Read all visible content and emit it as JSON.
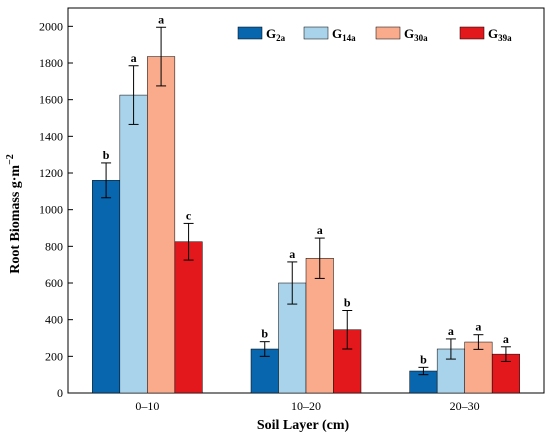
{
  "chart_data": {
    "type": "bar",
    "title": "",
    "xlabel": "Soil Layer (cm)",
    "ylabel": "Root Biomass g·m",
    "ylabel_superscript": "−2",
    "ylim": [
      0,
      2100
    ],
    "yticks": [
      0,
      200,
      400,
      600,
      800,
      1000,
      1200,
      1400,
      1600,
      1800,
      2000
    ],
    "categories": [
      "0–10",
      "10–20",
      "20–30"
    ],
    "legend_position": "top-right",
    "grid": false,
    "series": [
      {
        "name": "G",
        "subscript": "2a",
        "color": "#0766AE",
        "values": [
          1160,
          240,
          120
        ],
        "errors": [
          95,
          40,
          20
        ],
        "letters": [
          "b",
          "b",
          "b"
        ]
      },
      {
        "name": "G",
        "subscript": "14a",
        "color": "#A9D3EA",
        "values": [
          1625,
          600,
          240
        ],
        "errors": [
          160,
          115,
          55
        ],
        "letters": [
          "a",
          "a",
          "a"
        ]
      },
      {
        "name": "G",
        "subscript": "30a",
        "color": "#F9AB8C",
        "values": [
          1835,
          735,
          278
        ],
        "errors": [
          160,
          110,
          40
        ],
        "letters": [
          "a",
          "a",
          "a"
        ]
      },
      {
        "name": "G",
        "subscript": "39a",
        "color": "#E2181D",
        "values": [
          825,
          345,
          212
        ],
        "errors": [
          100,
          105,
          40
        ],
        "letters": [
          "c",
          "b",
          "a"
        ]
      }
    ]
  }
}
